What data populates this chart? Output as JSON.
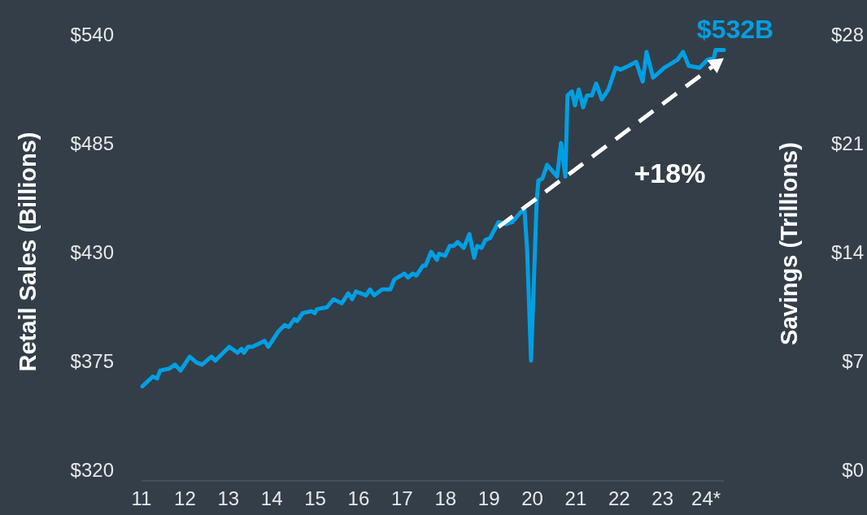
{
  "chart_data": {
    "type": "line",
    "ylabel": "Retail Sales (Billions)",
    "y2label": "Savings (Trillions)",
    "xlim": [
      11,
      24.41
    ],
    "xticks": [
      11,
      12,
      13,
      14,
      15,
      16,
      17,
      18,
      19,
      20,
      21,
      22,
      23,
      {
        "value": 24,
        "label": "24*"
      }
    ],
    "ylim": [
      320,
      540
    ],
    "yticks": [
      {
        "value": 320,
        "label": "$320"
      },
      {
        "value": 375,
        "label": "$375"
      },
      {
        "value": 430,
        "label": "$430"
      },
      {
        "value": 485,
        "label": "$485"
      },
      {
        "value": 540,
        "label": "$540"
      }
    ],
    "y2lim": [
      0,
      28
    ],
    "y2ticks": [
      {
        "value": 0,
        "label": "$0"
      },
      {
        "value": 7,
        "label": "$7"
      },
      {
        "value": 14,
        "label": "$14"
      },
      {
        "value": 21,
        "label": "$21"
      },
      {
        "value": 28,
        "label": "$28"
      }
    ],
    "grid": false,
    "marker": "none",
    "line_style": "solid",
    "series": [
      {
        "color": "#009fe3",
        "x": [
          11.02,
          11.26,
          11.36,
          11.43,
          11.64,
          11.77,
          11.9,
          12.11,
          12.27,
          12.39,
          12.61,
          12.7,
          13.02,
          13.21,
          13.3,
          13.36,
          13.45,
          13.55,
          13.83,
          13.92,
          14.16,
          14.3,
          14.39,
          14.52,
          14.58,
          14.71,
          14.91,
          14.99,
          15.04,
          15.27,
          15.42,
          15.61,
          15.76,
          15.85,
          15.94,
          16.17,
          16.26,
          16.36,
          16.54,
          16.73,
          16.82,
          17.05,
          17.14,
          17.24,
          17.33,
          17.48,
          17.54,
          17.67,
          17.8,
          17.85,
          17.99,
          18.1,
          18.19,
          18.28,
          18.42,
          18.55,
          18.66,
          18.73,
          18.83,
          18.92,
          19.03,
          19.22,
          19.39,
          19.54,
          19.73,
          19.82,
          19.88,
          19.97,
          20.04,
          20.1,
          20.14,
          20.23,
          20.34,
          20.57,
          20.66,
          20.76,
          20.81,
          20.91,
          20.98,
          21.07,
          21.17,
          21.26,
          21.37,
          21.47,
          21.6,
          21.75,
          21.92,
          22.03,
          22.22,
          22.39,
          22.54,
          22.63,
          22.78,
          23.04,
          23.34,
          23.47,
          23.6,
          23.85,
          24.03,
          24.18,
          24.22,
          24.41
        ],
        "values": [
          362,
          367,
          366,
          370,
          371,
          373,
          370,
          377,
          374,
          373,
          377,
          375,
          382,
          379,
          381,
          379,
          382,
          382,
          385,
          382,
          390,
          393,
          392,
          396,
          395,
          399,
          400,
          399,
          401,
          402,
          406,
          404,
          409,
          406,
          410,
          408,
          411,
          408,
          411,
          411,
          416,
          419,
          417,
          419,
          418,
          423,
          423,
          430,
          426,
          429,
          428,
          433,
          433,
          435,
          432,
          439,
          427,
          433,
          432,
          436,
          437,
          445,
          444,
          445,
          450,
          451,
          431,
          375,
          418,
          456,
          466,
          467,
          474,
          468,
          485,
          468,
          509,
          511,
          504,
          512,
          503,
          509,
          509,
          515,
          507,
          512,
          523,
          522,
          524,
          526,
          516,
          531,
          518,
          523,
          527,
          531,
          524,
          523,
          527,
          528,
          532,
          532
        ]
      }
    ],
    "annotations": [
      "+18%",
      {
        "text": "$532B",
        "x": 24.41,
        "y": 532
      }
    ]
  }
}
